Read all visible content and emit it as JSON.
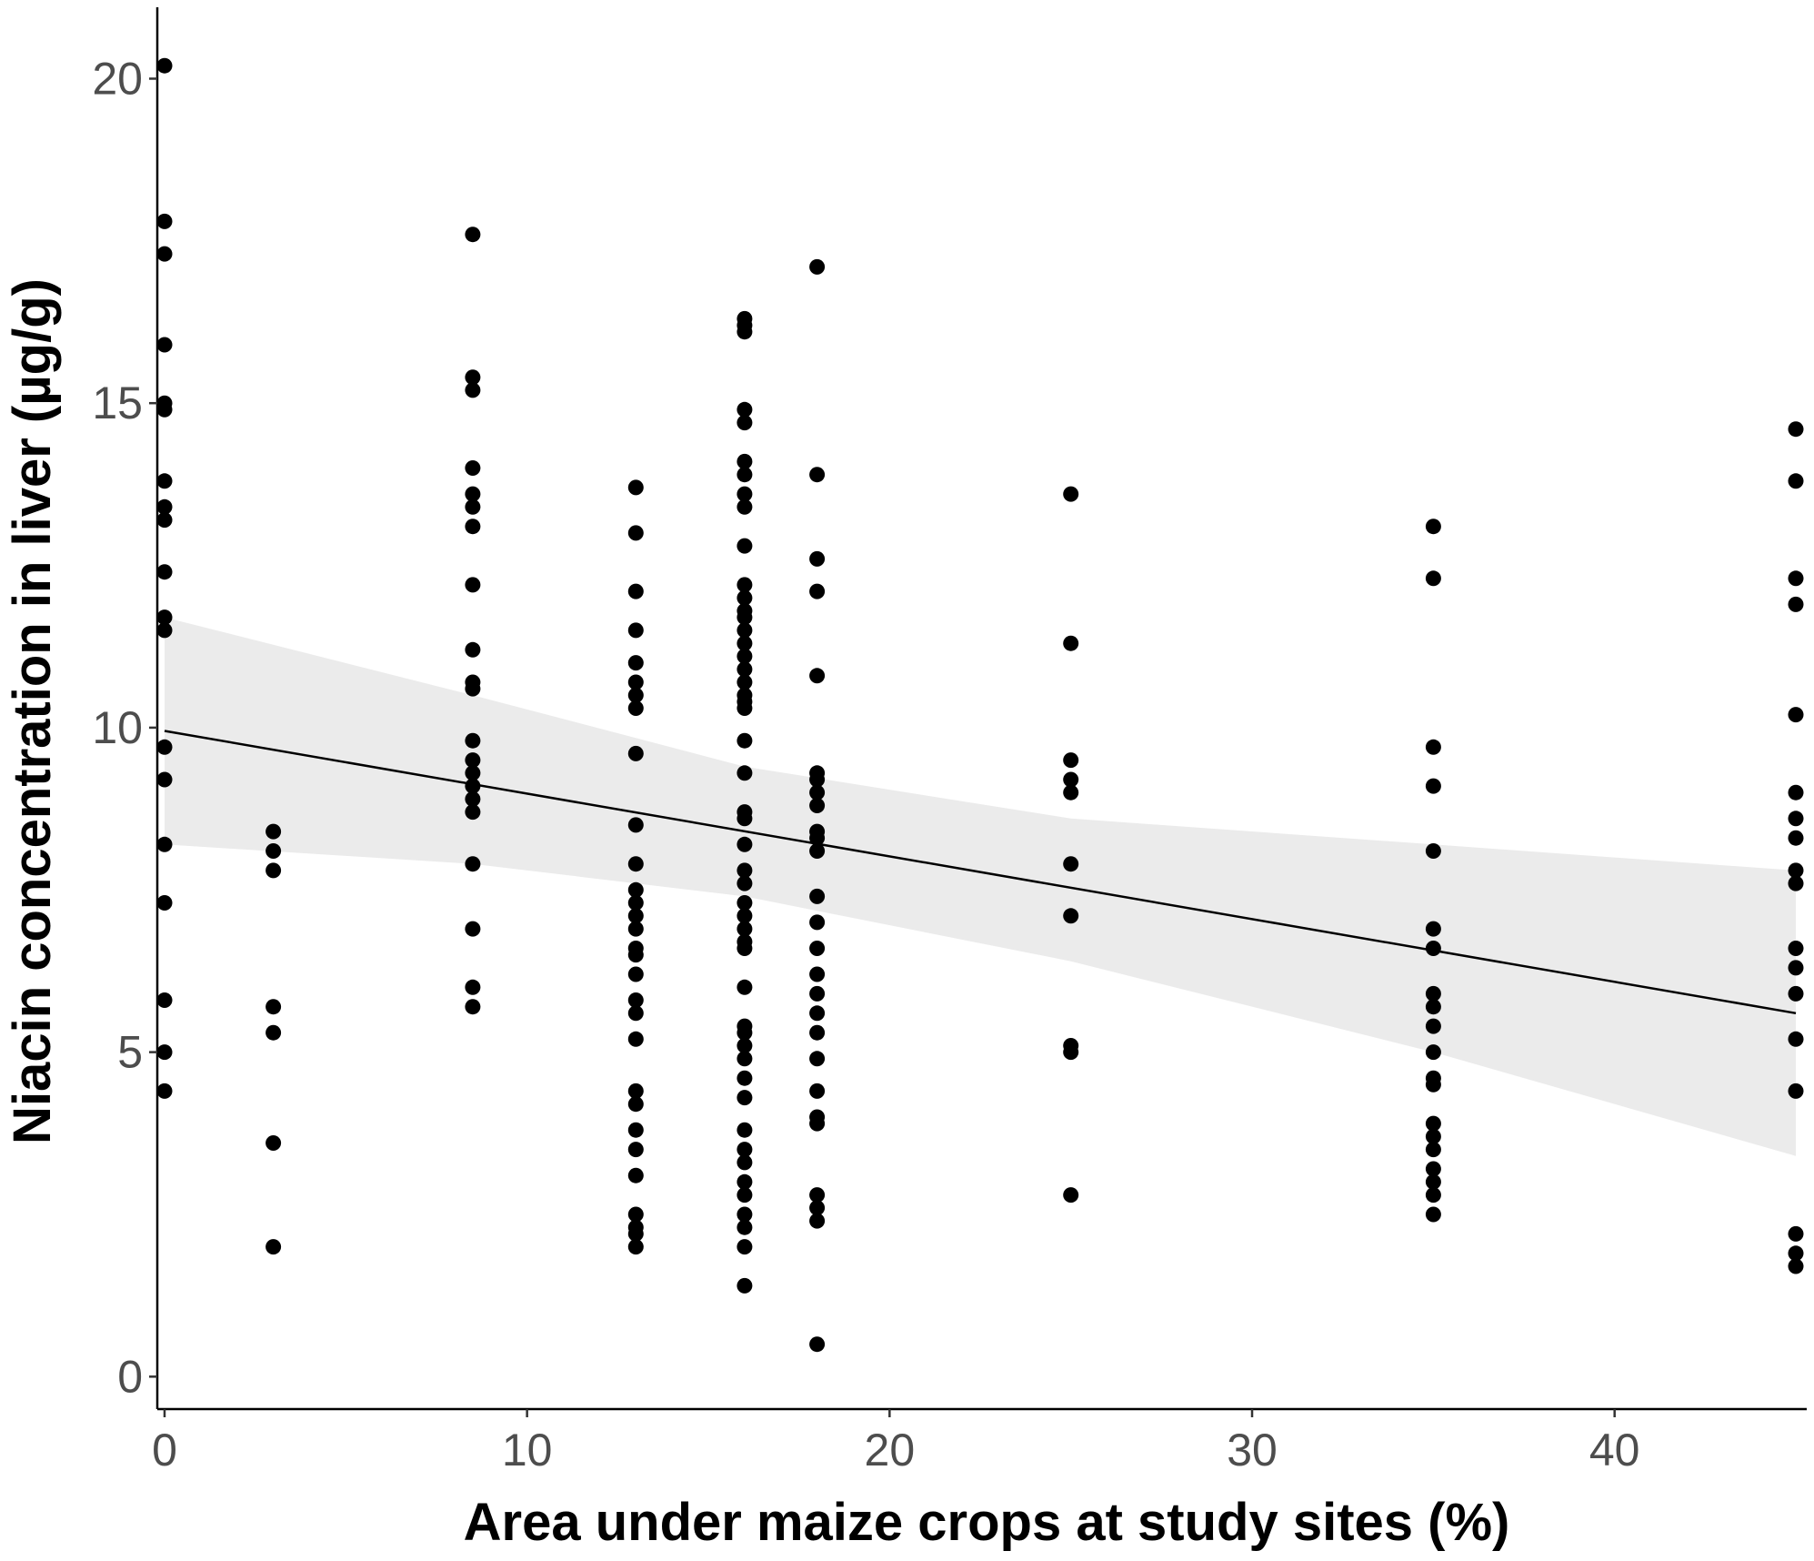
{
  "chart_data": {
    "type": "scatter",
    "xlabel": "Area under maize crops at study sites (%)",
    "ylabel": "Niacin concentration in liver (µg/g)",
    "xlim": [
      -0.2,
      45.3
    ],
    "ylim": [
      -0.5,
      21.1
    ],
    "x_ticks": [
      0,
      10,
      20,
      30,
      40
    ],
    "y_ticks": [
      0,
      5,
      10,
      15,
      20
    ],
    "grid": false,
    "point_color": "#000000",
    "ribbon_color": "#ebebeb",
    "line_color": "#000000",
    "fit_line": {
      "x": [
        0,
        45
      ],
      "y": [
        9.95,
        5.6
      ]
    },
    "confidence_band": {
      "x": [
        0,
        8.5,
        16,
        25,
        35,
        45
      ],
      "lower": [
        8.2,
        7.9,
        7.4,
        6.4,
        5.0,
        3.4
      ],
      "upper": [
        11.7,
        10.5,
        9.4,
        8.6,
        8.2,
        7.8
      ]
    },
    "groups": [
      {
        "x": 0,
        "y": [
          20.2,
          17.8,
          17.3,
          15.9,
          15.0,
          14.9,
          13.8,
          13.4,
          13.2,
          12.4,
          11.7,
          11.5,
          9.7,
          9.2,
          8.2,
          7.3,
          5.8,
          5.0,
          4.4
        ]
      },
      {
        "x": 3,
        "y": [
          8.4,
          8.1,
          7.8,
          5.7,
          5.3,
          3.6,
          2.0
        ]
      },
      {
        "x": 8.5,
        "y": [
          17.6,
          15.4,
          15.2,
          14.0,
          13.6,
          13.4,
          13.1,
          12.2,
          11.2,
          10.7,
          10.6,
          9.8,
          9.5,
          9.3,
          9.1,
          8.9,
          8.7,
          7.9,
          6.9,
          6.0,
          5.7
        ]
      },
      {
        "x": 13,
        "y": [
          13.7,
          13.0,
          12.1,
          11.5,
          11.0,
          10.7,
          10.5,
          10.3,
          9.6,
          8.5,
          7.9,
          7.5,
          7.3,
          7.1,
          6.9,
          6.6,
          6.5,
          6.2,
          5.8,
          5.6,
          5.2,
          4.4,
          4.2,
          3.8,
          3.5,
          3.1,
          2.5,
          2.3,
          2.2,
          2.0
        ]
      },
      {
        "x": 16,
        "y": [
          16.3,
          16.2,
          16.1,
          14.9,
          14.7,
          14.1,
          13.9,
          13.6,
          13.4,
          12.8,
          12.2,
          12.0,
          11.8,
          11.7,
          11.5,
          11.3,
          11.1,
          10.9,
          10.7,
          10.5,
          10.4,
          10.3,
          9.8,
          9.3,
          8.7,
          8.6,
          8.2,
          7.8,
          7.6,
          7.3,
          7.1,
          6.9,
          6.7,
          6.6,
          6.0,
          5.4,
          5.3,
          5.1,
          4.9,
          4.6,
          4.3,
          3.8,
          3.5,
          3.3,
          3.0,
          2.8,
          2.5,
          2.3,
          2.0,
          1.4
        ]
      },
      {
        "x": 18,
        "y": [
          17.1,
          13.9,
          12.6,
          12.1,
          10.8,
          9.3,
          9.2,
          9.0,
          8.8,
          8.4,
          8.3,
          8.1,
          7.4,
          7.0,
          6.6,
          6.2,
          5.9,
          5.6,
          5.3,
          4.9,
          4.4,
          4.0,
          3.9,
          2.8,
          2.6,
          2.4,
          0.5
        ]
      },
      {
        "x": 25,
        "y": [
          13.6,
          11.3,
          9.5,
          9.2,
          9.0,
          7.9,
          7.1,
          5.1,
          5.0,
          2.8
        ]
      },
      {
        "x": 35,
        "y": [
          13.1,
          12.3,
          9.7,
          9.1,
          8.1,
          6.9,
          6.6,
          5.9,
          5.7,
          5.4,
          5.0,
          4.6,
          4.5,
          3.9,
          3.7,
          3.5,
          3.2,
          3.0,
          2.8,
          2.5
        ]
      },
      {
        "x": 45,
        "y": [
          14.6,
          13.8,
          12.3,
          11.9,
          10.2,
          9.0,
          8.6,
          8.3,
          7.8,
          7.6,
          6.6,
          6.3,
          5.9,
          5.2,
          4.4,
          2.2,
          1.9,
          1.7
        ]
      }
    ]
  }
}
